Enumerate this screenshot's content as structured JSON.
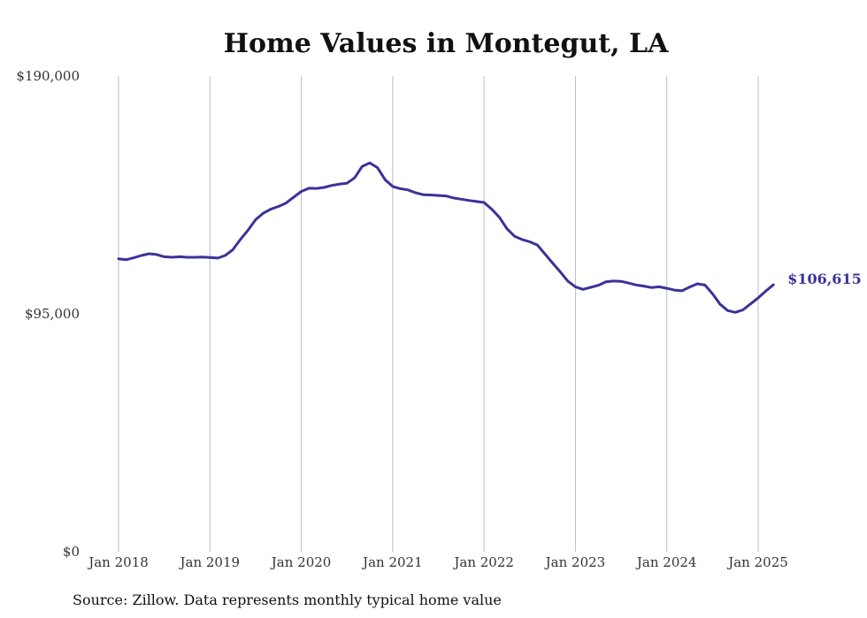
{
  "chart_data": {
    "type": "line",
    "title": "Home Values in Montegut, LA",
    "source": "Source: Zillow. Data represents monthly typical home value",
    "ylim": [
      0,
      190000
    ],
    "y_ticks": [
      {
        "value": 0,
        "label": "$0"
      },
      {
        "value": 95000,
        "label": "$95,000"
      },
      {
        "value": 190000,
        "label": "$190,000"
      }
    ],
    "x_ticks": [
      {
        "value": "2018-01",
        "label": "Jan 2018"
      },
      {
        "value": "2019-01",
        "label": "Jan 2019"
      },
      {
        "value": "2020-01",
        "label": "Jan 2020"
      },
      {
        "value": "2021-01",
        "label": "Jan 2021"
      },
      {
        "value": "2022-01",
        "label": "Jan 2022"
      },
      {
        "value": "2023-01",
        "label": "Jan 2023"
      },
      {
        "value": "2024-01",
        "label": "Jan 2024"
      },
      {
        "value": "2025-01",
        "label": "Jan 2025"
      }
    ],
    "grid": {
      "vertical": true,
      "horizontal": false
    },
    "line_color": "#3a3399",
    "end_label": "$106,615",
    "series": [
      {
        "x": [
          "2018-01",
          "2018-02",
          "2018-03",
          "2018-04",
          "2018-05",
          "2018-06",
          "2018-07",
          "2018-08",
          "2018-09",
          "2018-10",
          "2018-11",
          "2018-12",
          "2019-01",
          "2019-02",
          "2019-03",
          "2019-04",
          "2019-05",
          "2019-06",
          "2019-07",
          "2019-08",
          "2019-09",
          "2019-10",
          "2019-11",
          "2019-12",
          "2020-01",
          "2020-02",
          "2020-03",
          "2020-04",
          "2020-05",
          "2020-06",
          "2020-07",
          "2020-08",
          "2020-09",
          "2020-10",
          "2020-11",
          "2020-12",
          "2021-01",
          "2021-02",
          "2021-03",
          "2021-04",
          "2021-05",
          "2021-06",
          "2021-07",
          "2021-08",
          "2021-09",
          "2021-10",
          "2021-11",
          "2021-12",
          "2022-01",
          "2022-02",
          "2022-03",
          "2022-04",
          "2022-05",
          "2022-06",
          "2022-07",
          "2022-08",
          "2022-09",
          "2022-10",
          "2022-11",
          "2022-12",
          "2023-01",
          "2023-02",
          "2023-03",
          "2023-04",
          "2023-05",
          "2023-06",
          "2023-07",
          "2023-08",
          "2023-09",
          "2023-10",
          "2023-11",
          "2023-12",
          "2024-01",
          "2024-02",
          "2024-03",
          "2024-04",
          "2024-05",
          "2024-06",
          "2024-07",
          "2024-08",
          "2024-09",
          "2024-10",
          "2024-11",
          "2024-12",
          "2025-01",
          "2025-02",
          "2025-03"
        ],
        "values": [
          117000,
          116600,
          117400,
          118300,
          119000,
          118700,
          117800,
          117600,
          117800,
          117600,
          117600,
          117700,
          117500,
          117300,
          118300,
          120600,
          124700,
          128400,
          132600,
          135200,
          136800,
          137900,
          139300,
          141600,
          143900,
          145200,
          145100,
          145500,
          146300,
          146800,
          147200,
          149300,
          153900,
          155300,
          153400,
          148600,
          145900,
          145000,
          144500,
          143400,
          142600,
          142500,
          142300,
          142100,
          141300,
          140800,
          140300,
          139900,
          139500,
          136800,
          133600,
          129000,
          126000,
          124700,
          123800,
          122500,
          118900,
          115300,
          111800,
          108100,
          105800,
          104800,
          105600,
          106400,
          107800,
          108100,
          108000,
          107300,
          106500,
          106100,
          105500,
          105800,
          105200,
          104500,
          104200,
          105700,
          107000,
          106500,
          103000,
          98800,
          96300,
          95600,
          96600,
          99000,
          101400,
          104100,
          106615
        ]
      }
    ]
  }
}
